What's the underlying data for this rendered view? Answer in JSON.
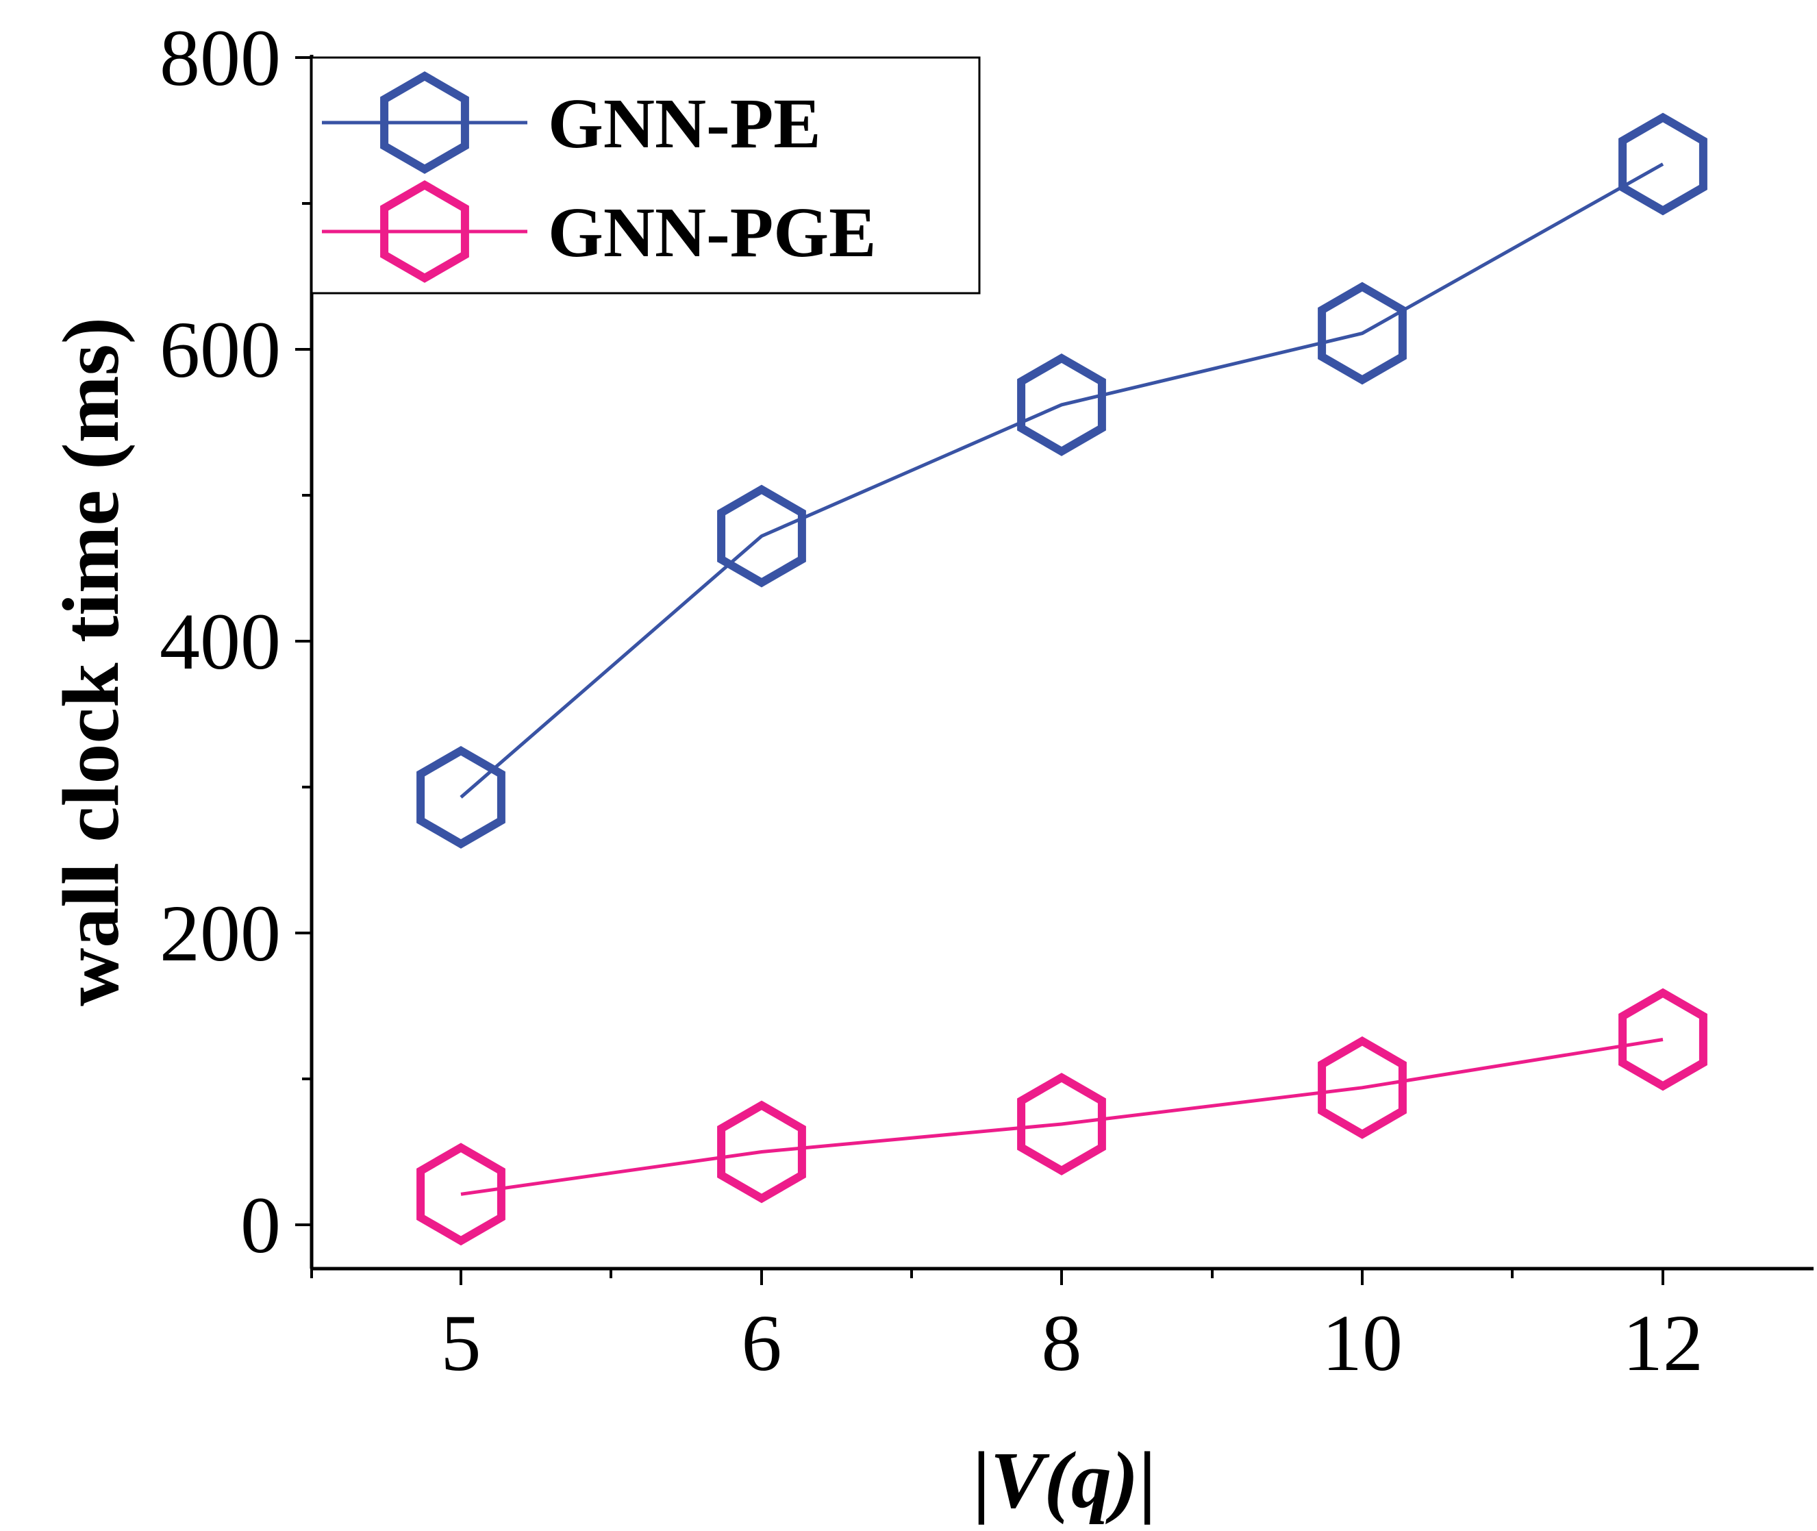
{
  "chart_data": {
    "type": "line",
    "x_categories": [
      "5",
      "6",
      "8",
      "10",
      "12"
    ],
    "xlabel_prefix": "|",
    "xlabel_italic": "V(q)",
    "xlabel_suffix": "|",
    "ylabel": "wall clock time (ms)",
    "ylim": [
      -30,
      800
    ],
    "yticks": [
      0,
      200,
      400,
      600,
      800
    ],
    "ytick_labels": [
      "0",
      "200",
      "400",
      "600",
      "800"
    ],
    "y_minor_ticks": [
      100,
      300,
      500,
      700
    ],
    "legend_position": "top-left",
    "series": [
      {
        "name": "GNN-PE",
        "color": "#3953a4",
        "marker": "hexagon",
        "values": [
          293,
          472,
          562,
          611,
          727
        ]
      },
      {
        "name": "GNN-PGE",
        "color": "#ed1c8a",
        "marker": "hexagon",
        "values": [
          21,
          50,
          69,
          94,
          127
        ]
      }
    ]
  }
}
